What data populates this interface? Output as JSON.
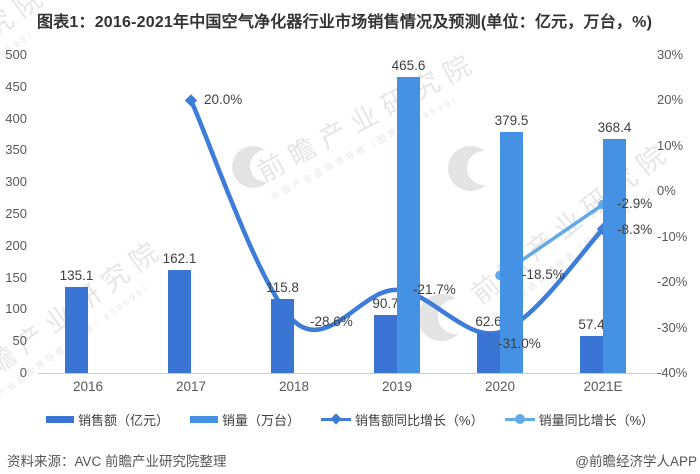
{
  "title": "图表1：2016-2021年中国空气净化器行业市场销售情况及预测(单位：亿元，万台，%)",
  "source": "资料来源：AVC 前瞻产业研究院整理",
  "credit": "@前瞻经济学人APP",
  "watermark": {
    "big": "前瞻产业研究院",
    "small": "中国产业咨询领导者（股票：839599）",
    "logo": "qianzhan-logo"
  },
  "colors": {
    "sales_bar": "#3A75D4",
    "volume_bar": "#4591E3",
    "sales_line": "#3D7CD9",
    "volume_line": "#62AAE7",
    "axis_text": "#595959",
    "label_text": "#3f3f3f",
    "axis_line": "#cccccc"
  },
  "chart_data": {
    "type": "bar",
    "subtype": "grouped bars with two growth-rate line series (dual axis)",
    "categories": [
      "2016",
      "2017",
      "2018",
      "2019",
      "2020",
      "2021E"
    ],
    "left_axis": {
      "ticks": [
        "500",
        "450",
        "400",
        "350",
        "300",
        "250",
        "200",
        "150",
        "100",
        "50",
        "0"
      ],
      "min": 0,
      "max": 500
    },
    "right_axis": {
      "ticks": [
        "30%",
        "20%",
        "10%",
        "0%",
        "-10%",
        "-20%",
        "-30%",
        "-40%"
      ],
      "min": -40,
      "max": 30
    },
    "grid": "off",
    "legend_position": "bottom",
    "series": [
      {
        "name": "销售额（亿元）",
        "type": "bar",
        "axis": "left",
        "values": [
          135.1,
          162.1,
          115.8,
          90.7,
          62.6,
          57.4
        ],
        "labels": [
          "135.1",
          "162.1",
          "115.8",
          "90.7",
          "62.6",
          "57.4"
        ]
      },
      {
        "name": "销量（万台）",
        "type": "bar",
        "axis": "left",
        "values": [
          null,
          null,
          null,
          465.6,
          379.5,
          368.4
        ],
        "labels": [
          null,
          null,
          null,
          "465.6",
          "379.5",
          "368.4"
        ]
      },
      {
        "name": "销售额同比增长（%）",
        "type": "line",
        "marker": "diamond",
        "smooth": true,
        "axis": "right",
        "values": [
          null,
          20.0,
          -28.6,
          -21.7,
          -31.0,
          -8.3
        ],
        "labels": [
          null,
          "20.0%",
          "-28.6%",
          "-21.7%",
          "-31.0%",
          "-8.3%"
        ],
        "label_dx": [
          0,
          13,
          16,
          16,
          -2,
          14
        ],
        "label_dy": [
          0,
          0,
          1,
          0,
          12,
          1
        ]
      },
      {
        "name": "销量同比增长（%）",
        "type": "line",
        "marker": "circle",
        "smooth": false,
        "axis": "right",
        "values": [
          null,
          null,
          null,
          null,
          -18.5,
          -2.9
        ],
        "labels": [
          null,
          null,
          null,
          null,
          "-18.5%",
          "-2.9%"
        ],
        "label_dx": [
          0,
          0,
          0,
          0,
          22,
          14
        ],
        "label_dy": [
          0,
          0,
          0,
          0,
          0,
          0
        ]
      }
    ]
  }
}
